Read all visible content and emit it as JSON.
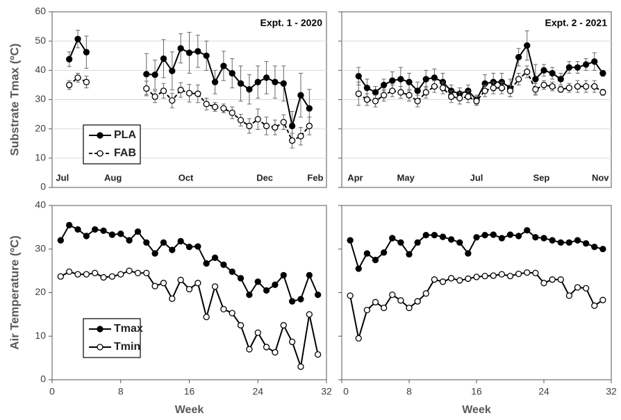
{
  "chart_data": [
    {
      "type": "line",
      "title": "Expt. 1 - 2020",
      "ylabel": "Substrate Tmax (ºC)",
      "x": [
        2,
        3,
        4,
        5,
        6,
        7,
        8,
        9,
        10,
        11,
        12,
        13,
        14,
        15,
        16,
        17,
        18,
        19,
        20,
        21,
        22,
        23,
        24,
        25,
        26,
        27,
        28,
        29,
        30
      ],
      "series": [
        {
          "name": "PLA",
          "color": "#000000",
          "marker_fill": "#000000",
          "dashed": false,
          "values": [
            43.8,
            50.7,
            46.2,
            null,
            null,
            null,
            null,
            null,
            null,
            38.7,
            38.5,
            44,
            39.8,
            47.5,
            46,
            46.5,
            45,
            36,
            41.5,
            39,
            35.5,
            33.5,
            36,
            37.5,
            36,
            35.5,
            21,
            31.5,
            27
          ],
          "errors": [
            2.5,
            3,
            5.5,
            null,
            null,
            null,
            null,
            null,
            null,
            7,
            5,
            6.5,
            6.5,
            5,
            7,
            5.5,
            5,
            4,
            5,
            5,
            6,
            5,
            5.5,
            5.5,
            5.5,
            6,
            5,
            7.5,
            6.5
          ]
        },
        {
          "name": "FAB",
          "color": "#000000",
          "marker_fill": "#ffffff",
          "dashed": true,
          "values": [
            35,
            37.5,
            36,
            null,
            null,
            null,
            null,
            null,
            null,
            33.8,
            31,
            33,
            29.7,
            33.3,
            32.2,
            32,
            28.5,
            27.5,
            27,
            25.5,
            23,
            21,
            23.3,
            21,
            20.5,
            22.3,
            16,
            17.5,
            21
          ],
          "errors": [
            1.5,
            1.5,
            2,
            null,
            null,
            null,
            null,
            null,
            null,
            2.5,
            2,
            2.5,
            2.5,
            2.5,
            3,
            3,
            2,
            1.5,
            1.5,
            2,
            2,
            2.5,
            3.5,
            3,
            2.5,
            2.5,
            2.5,
            3,
            3
          ]
        }
      ],
      "xlim": [
        0,
        32
      ],
      "xtick_inside": true,
      "xticks": [
        {
          "value": 1.2,
          "label": "Jul"
        },
        {
          "value": 7.1,
          "label": "Aug"
        },
        {
          "value": 15.6,
          "label": "Oct"
        },
        {
          "value": 24.8,
          "label": "Dec"
        },
        {
          "value": 30.7,
          "label": "Feb"
        }
      ],
      "ylim": [
        0,
        60
      ],
      "yticks": [
        0,
        10,
        20,
        30,
        40,
        50,
        60
      ],
      "grid": true,
      "legend": "lower-left",
      "show_ytick_labels": true
    },
    {
      "type": "line",
      "title": "Expt. 2 - 2021",
      "x": [
        2,
        3,
        4,
        5,
        6,
        7,
        8,
        9,
        10,
        11,
        12,
        13,
        14,
        15,
        16,
        17,
        18,
        19,
        20,
        21,
        22,
        23,
        24,
        25,
        26,
        27,
        28,
        29,
        30,
        31
      ],
      "series": [
        {
          "color": "#000000",
          "marker_fill": "#000000",
          "dashed": false,
          "values": [
            38,
            34,
            32.5,
            35,
            36.5,
            37,
            36,
            33,
            37,
            37.5,
            36,
            33,
            32,
            33,
            30,
            35.5,
            36,
            36,
            34,
            44.5,
            48.5,
            37,
            40,
            39,
            37,
            41,
            41,
            42,
            43,
            39
          ],
          "errors": [
            3,
            3,
            2,
            2,
            3,
            4,
            3,
            3,
            3,
            3,
            3,
            2,
            2,
            2,
            1.5,
            3,
            3,
            3,
            3,
            3,
            5,
            5,
            2,
            2,
            2,
            2,
            2,
            2,
            3,
            1
          ]
        },
        {
          "color": "#000000",
          "marker_fill": "#ffffff",
          "dashed": true,
          "values": [
            32,
            30,
            29.5,
            31.5,
            33,
            32.5,
            31.5,
            29.5,
            32.5,
            34.5,
            34,
            31,
            30.5,
            31,
            29.5,
            33,
            34,
            34,
            33,
            37,
            39.5,
            33.5,
            35,
            34.5,
            33.5,
            34,
            34.5,
            34.5,
            34.5,
            32.5
          ],
          "errors": [
            4,
            2,
            2,
            2,
            2,
            2,
            2,
            2,
            2,
            2,
            2,
            2,
            2,
            2,
            1.5,
            2,
            2,
            2,
            2,
            2,
            2,
            2,
            1.5,
            1.5,
            1,
            1.5,
            2,
            2,
            2,
            1
          ]
        }
      ],
      "xlim": [
        0,
        32
      ],
      "xtick_inside": true,
      "xticks": [
        {
          "value": 1.6,
          "label": "Apr"
        },
        {
          "value": 7.6,
          "label": "May"
        },
        {
          "value": 16,
          "label": "Jul"
        },
        {
          "value": 23.7,
          "label": "Sep"
        },
        {
          "value": 30.7,
          "label": "Nov"
        }
      ],
      "ylim": [
        0,
        60
      ],
      "yticks": [
        0,
        10,
        20,
        30,
        40,
        50,
        60
      ],
      "grid": true,
      "show_ytick_labels": false
    },
    {
      "type": "line",
      "ylabel": "Air Temperature (ºC)",
      "xlabel": "Week",
      "x": [
        1,
        2,
        3,
        4,
        5,
        6,
        7,
        8,
        9,
        10,
        11,
        12,
        13,
        14,
        15,
        16,
        17,
        18,
        19,
        20,
        21,
        22,
        23,
        24,
        25,
        26,
        27,
        28,
        29,
        30,
        31
      ],
      "series": [
        {
          "name": "Tmax",
          "color": "#000000",
          "marker_fill": "#000000",
          "dashed": false,
          "values": [
            32,
            35.5,
            34.5,
            33,
            34.5,
            34.2,
            33.3,
            33.5,
            32,
            34,
            31.5,
            29,
            31.5,
            29.8,
            31.8,
            30.5,
            30.6,
            26.7,
            28,
            26.4,
            24.8,
            23.3,
            19.5,
            22.5,
            20.5,
            21.8,
            24,
            18,
            18.5,
            24,
            19.5
          ]
        },
        {
          "name": "Tmin",
          "color": "#000000",
          "marker_fill": "#ffffff",
          "dashed": false,
          "values": [
            23.7,
            24.8,
            24.2,
            24.2,
            24.5,
            23.5,
            23.7,
            24.2,
            25,
            24.5,
            24.5,
            21.5,
            22.2,
            18.6,
            22.9,
            20.8,
            22.2,
            14.4,
            21.4,
            16.2,
            15.3,
            12.5,
            7,
            10.8,
            7.5,
            6.3,
            12.5,
            8.7,
            3,
            15,
            5.8
          ]
        }
      ],
      "xlim": [
        0,
        32
      ],
      "xticks": [
        0,
        8,
        16,
        24,
        32
      ],
      "ylim": [
        0,
        40
      ],
      "yticks": [
        0,
        10,
        20,
        30,
        40
      ],
      "grid": false,
      "legend": "lower-left",
      "show_ytick_labels": true
    },
    {
      "type": "line",
      "xlabel": "Week",
      "x": [
        1,
        2,
        3,
        4,
        5,
        6,
        7,
        8,
        9,
        10,
        11,
        12,
        13,
        14,
        15,
        16,
        17,
        18,
        19,
        20,
        21,
        22,
        23,
        24,
        25,
        26,
        27,
        28,
        29,
        30,
        31
      ],
      "series": [
        {
          "color": "#000000",
          "marker_fill": "#000000",
          "dashed": false,
          "values": [
            32,
            25.5,
            29,
            27.5,
            29.2,
            32.5,
            31.5,
            28.8,
            31.5,
            33.2,
            33.2,
            32.8,
            32.2,
            31.5,
            29,
            32.7,
            33.2,
            33.3,
            32.5,
            33.3,
            33,
            34.3,
            32.7,
            32.5,
            32,
            31.5,
            31.5,
            32,
            31.3,
            30.5,
            30
          ]
        },
        {
          "color": "#000000",
          "marker_fill": "#ffffff",
          "dashed": false,
          "values": [
            19.3,
            9.5,
            16,
            17.8,
            16.5,
            19.5,
            18.2,
            16.5,
            18,
            19.8,
            23,
            22.5,
            23.3,
            22.8,
            23.2,
            23.6,
            23.8,
            23.9,
            24.2,
            23.8,
            24.3,
            24.6,
            24.5,
            22.2,
            23,
            23,
            19.3,
            21.2,
            21,
            17,
            18.3
          ]
        }
      ],
      "xlim": [
        0,
        32
      ],
      "xticks": [
        0,
        8,
        16,
        24,
        32
      ],
      "ylim": [
        0,
        40
      ],
      "yticks": [
        0,
        10,
        20,
        30,
        40
      ],
      "grid": false,
      "show_ytick_labels": false
    }
  ]
}
